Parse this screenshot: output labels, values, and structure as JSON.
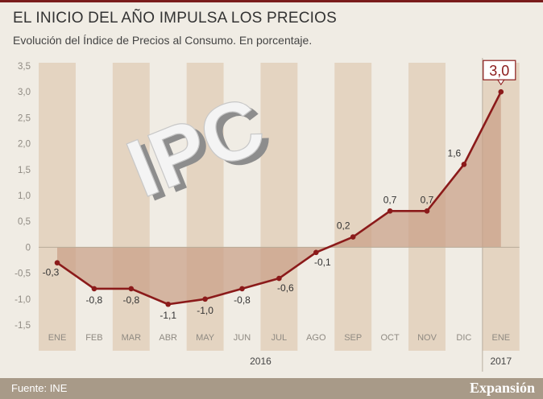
{
  "header": {
    "title": "EL INICIO DEL AÑO IMPULSA LOS PRECIOS",
    "subtitle": "Evolución del Índice de Precios al Consumo. En porcentaje."
  },
  "footer": {
    "source": "Fuente: INE",
    "brand": "Expansión"
  },
  "decoration": {
    "text": "IPC"
  },
  "colors": {
    "line": "#8b1a1a",
    "area": "#c99f86",
    "stripe": "#e4d4c1",
    "background": "#f0ece4",
    "footer": "#a89a88"
  },
  "chart_data": {
    "type": "line",
    "title": "EL INICIO DEL AÑO IMPULSA LOS PRECIOS",
    "subtitle": "Evolución del Índice de Precios al Consumo. En porcentaje.",
    "xlabel": "",
    "ylabel": "",
    "categories": [
      "ENE",
      "FEB",
      "MAR",
      "ABR",
      "MAY",
      "JUN",
      "JUL",
      "AGO",
      "SEP",
      "OCT",
      "NOV",
      "DIC",
      "ENE"
    ],
    "year_labels": [
      "2016",
      "2017"
    ],
    "values": [
      -0.3,
      -0.8,
      -0.8,
      -1.1,
      -1.0,
      -0.8,
      -0.6,
      -0.1,
      0.2,
      0.7,
      0.7,
      1.6,
      3.0
    ],
    "value_labels": [
      "-0,3",
      "-0,8",
      "-0,8",
      "-1,1",
      "-1,0",
      "-0,8",
      "-0,6",
      "-0,1",
      "0,2",
      "0,7",
      "0,7",
      "1,6",
      "3,0"
    ],
    "yticks": [
      "3,5",
      "3,0",
      "2,5",
      "2,0",
      "1,5",
      "1,0",
      "0,5",
      "0",
      "-0,5",
      "-1,0",
      "-1,5"
    ],
    "ylim": [
      -1.5,
      3.5
    ],
    "grid": false,
    "highlight_last": true
  }
}
